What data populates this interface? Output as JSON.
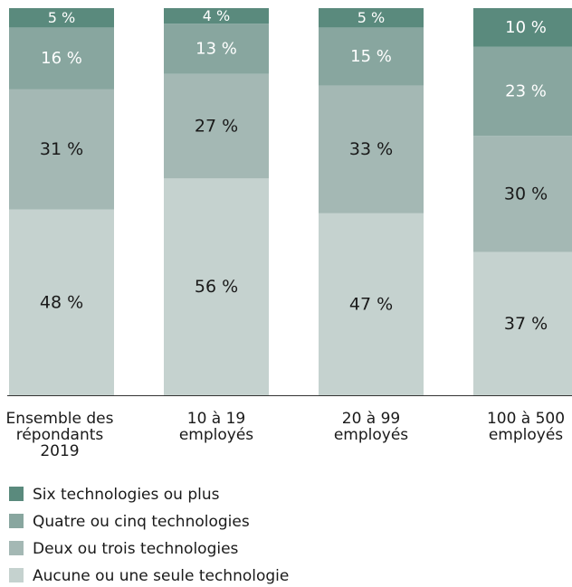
{
  "chart_data": {
    "type": "bar",
    "stacked": true,
    "orientation": "vertical",
    "categories": [
      [
        "Ensemble des",
        "répondants",
        "2019"
      ],
      [
        "10 à 19",
        "employés"
      ],
      [
        "20 à 99",
        "employés"
      ],
      [
        "100 à 500",
        "employés"
      ]
    ],
    "series": [
      {
        "name": "Aucune ou une seule technologie",
        "color": "#c5d2cf",
        "values": [
          48,
          56,
          47,
          37
        ],
        "labels": [
          "48 %",
          "56 %",
          "47 %",
          "37 %"
        ]
      },
      {
        "name": "Deux ou trois technologies",
        "color": "#a4b8b4",
        "values": [
          31,
          27,
          33,
          30
        ],
        "labels": [
          "31 %",
          "27 %",
          "33 %",
          "30 %"
        ]
      },
      {
        "name": "Quatre ou cinq technologies",
        "color": "#88a69f",
        "values": [
          16,
          13,
          15,
          23
        ],
        "labels": [
          "16 %",
          "13 %",
          "15 %",
          "23 %"
        ]
      },
      {
        "name": "Six technologies ou plus",
        "color": "#5a8a7d",
        "values": [
          5,
          4,
          5,
          10
        ],
        "labels": [
          "5 %",
          "4 %",
          "5 %",
          "10 %"
        ]
      }
    ],
    "legend_order": [
      "Six technologies ou plus",
      "Quatre ou cinq technologies",
      "Deux ou trois technologies",
      "Aucune ou une seule technologie"
    ],
    "ylim": [
      0,
      100
    ],
    "grid": false,
    "legend_position": "bottom-left",
    "title": "",
    "xlabel": "",
    "ylabel": ""
  },
  "colors": {
    "dark_label_text": "#1a1a1a",
    "light_label_text": "#ffffff",
    "axis": "#333333"
  }
}
